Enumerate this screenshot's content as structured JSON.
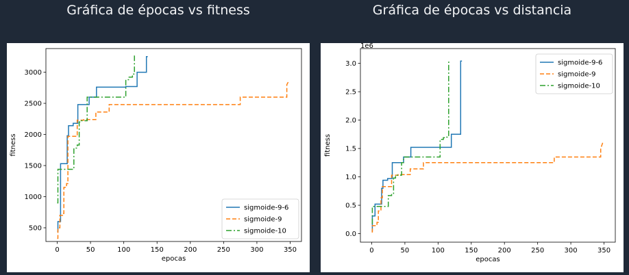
{
  "titles": {
    "left": "Gráfica de épocas vs fitness",
    "right": "Gráfica de épocas vs distancia"
  },
  "chart_data": [
    {
      "type": "line",
      "xlabel": "epocas",
      "ylabel": "fitness",
      "xlim": [
        -17,
        367
      ],
      "ylim": [
        280,
        3380
      ],
      "xticks": [
        0,
        50,
        100,
        150,
        200,
        250,
        300,
        350
      ],
      "yticks": [
        500,
        1000,
        1500,
        2000,
        2500,
        3000
      ],
      "ytick_labels": [
        "500",
        "1000",
        "1500",
        "2000",
        "2500",
        "3000"
      ],
      "grid": false,
      "legend": "bottom-right",
      "series": [
        {
          "name": "sigmoide-9-6",
          "color": "#1f77b4",
          "dash": "",
          "x": [
            0,
            1,
            1,
            5,
            5,
            15,
            15,
            17,
            17,
            24,
            24,
            31,
            31,
            48,
            48,
            59,
            59,
            103,
            103,
            105,
            105,
            120,
            120,
            134,
            134,
            136
          ],
          "y": [
            440,
            440,
            600,
            600,
            1530,
            1530,
            1980,
            1980,
            2140,
            2140,
            2180,
            2180,
            2480,
            2480,
            2600,
            2600,
            2760,
            2760,
            2770,
            2770,
            2770,
            2770,
            3000,
            3000,
            3250,
            3250
          ]
        },
        {
          "name": "sigmoide-9",
          "color": "#ff7f0e",
          "dash": "6,3",
          "x": [
            0,
            1,
            1,
            4,
            4,
            8,
            8,
            10,
            10,
            14,
            14,
            16,
            16,
            30,
            30,
            40,
            40,
            58,
            58,
            78,
            78,
            275,
            275,
            345,
            345,
            348
          ],
          "y": [
            330,
            330,
            500,
            500,
            700,
            700,
            730,
            730,
            1150,
            1150,
            1210,
            1210,
            1970,
            1970,
            2230,
            2230,
            2240,
            2240,
            2360,
            2360,
            2480,
            2480,
            2600,
            2600,
            2800,
            2860
          ]
        },
        {
          "name": "sigmoide-10",
          "color": "#2ca02c",
          "dash": "8,3,2,3",
          "x": [
            0,
            1,
            1,
            2,
            2,
            25,
            25,
            30,
            30,
            33,
            33,
            36,
            36,
            45,
            45,
            48,
            48,
            103,
            103,
            108,
            108,
            113,
            113,
            116,
            116,
            117
          ],
          "y": [
            900,
            900,
            1440,
            1440,
            1440,
            1440,
            1780,
            1780,
            1830,
            1830,
            2200,
            2200,
            2220,
            2220,
            2600,
            2600,
            2600,
            2600,
            2880,
            2880,
            2920,
            2920,
            2970,
            2970,
            3260,
            3260
          ]
        }
      ]
    },
    {
      "type": "line",
      "xlabel": "epocas",
      "ylabel": "fitness",
      "offset_text": "1e6",
      "xlim": [
        -17,
        367
      ],
      "ylim": [
        -0.15,
        3.26
      ],
      "xticks": [
        0,
        50,
        100,
        150,
        200,
        250,
        300,
        350
      ],
      "yticks": [
        0,
        0.5,
        1,
        1.5,
        2,
        2.5,
        3
      ],
      "ytick_labels": [
        "0.0",
        "0.5",
        "1.0",
        "1.5",
        "2.0",
        "2.5",
        "3.0"
      ],
      "grid": false,
      "legend": "top-right",
      "series": [
        {
          "name": "sigmoide-9-6",
          "color": "#1f77b4",
          "dash": "",
          "x": [
            0,
            1,
            1,
            5,
            5,
            15,
            15,
            17,
            17,
            24,
            24,
            31,
            31,
            48,
            48,
            59,
            59,
            103,
            103,
            105,
            105,
            120,
            120,
            134,
            134,
            136
          ],
          "y": [
            0.05,
            0.05,
            0.31,
            0.31,
            0.52,
            0.52,
            0.8,
            0.8,
            0.94,
            0.94,
            0.97,
            0.97,
            1.25,
            1.25,
            1.35,
            1.35,
            1.52,
            1.52,
            1.52,
            1.52,
            1.52,
            1.52,
            1.75,
            1.75,
            3.04,
            3.04
          ]
        },
        {
          "name": "sigmoide-9",
          "color": "#ff7f0e",
          "dash": "6,3",
          "x": [
            0,
            1,
            1,
            4,
            4,
            8,
            8,
            10,
            10,
            14,
            14,
            16,
            16,
            30,
            30,
            40,
            40,
            58,
            58,
            78,
            78,
            275,
            275,
            345,
            345,
            348
          ],
          "y": [
            0.03,
            0.03,
            0.14,
            0.14,
            0.14,
            0.14,
            0.2,
            0.2,
            0.4,
            0.4,
            0.63,
            0.63,
            0.83,
            0.83,
            1.03,
            1.03,
            1.04,
            1.04,
            1.14,
            1.14,
            1.25,
            1.25,
            1.35,
            1.35,
            1.5,
            1.6
          ]
        },
        {
          "name": "sigmoide-10",
          "color": "#2ca02c",
          "dash": "8,3,2,3",
          "x": [
            0,
            1,
            1,
            2,
            2,
            25,
            25,
            30,
            30,
            33,
            33,
            36,
            36,
            45,
            45,
            48,
            48,
            103,
            103,
            108,
            108,
            113,
            113,
            116,
            116,
            117
          ],
          "y": [
            0.18,
            0.18,
            0.48,
            0.48,
            0.48,
            0.48,
            0.67,
            0.67,
            0.7,
            0.7,
            0.98,
            0.98,
            1.03,
            1.03,
            1.25,
            1.25,
            1.35,
            1.35,
            1.66,
            1.66,
            1.69,
            1.69,
            1.7,
            1.7,
            3.02,
            3.02
          ]
        }
      ]
    }
  ]
}
